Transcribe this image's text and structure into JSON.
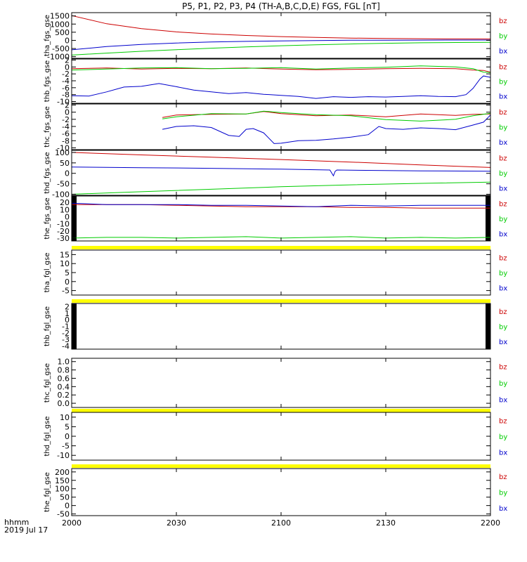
{
  "title": "P5, P1, P2, P3, P4 (TH-A,B,C,D,E) FGS, FGL [nT]",
  "footer": {
    "time_label": "hhmm",
    "date_label": "2019 Jul 17"
  },
  "x_axis": {
    "range": [
      0,
      120
    ],
    "ticks": [
      {
        "value": 0,
        "label": "2000"
      },
      {
        "value": 30,
        "label": "2030"
      },
      {
        "value": 60,
        "label": "2100"
      },
      {
        "value": 90,
        "label": "2130"
      },
      {
        "value": 120,
        "label": "2200"
      }
    ]
  },
  "series_colors": {
    "bx": "#0000cc",
    "by": "#00cc00",
    "bz": "#cc0000",
    "gap": "#ffff00",
    "fill": "#000000"
  },
  "legend_labels": [
    "bz",
    "by",
    "bx"
  ],
  "chart_data": [
    {
      "type": "line",
      "ylabel": "tha_fgs_gse",
      "ylim": [
        -1100,
        1700
      ],
      "yticks": [
        {
          "value": 1500,
          "label": "1500"
        },
        {
          "value": 1000,
          "label": "1000"
        },
        {
          "value": 500,
          "label": "500"
        },
        {
          "value": 0,
          "label": "0"
        },
        {
          "value": -500,
          "label": "-500"
        },
        {
          "value": -1000,
          "label": "-1000"
        }
      ],
      "series": [
        {
          "name": "bz",
          "x": [
            0,
            10,
            20,
            30,
            40,
            50,
            60,
            70,
            80,
            90,
            100,
            110,
            120
          ],
          "y": [
            1520,
            1020,
            720,
            520,
            390,
            300,
            230,
            180,
            140,
            115,
            100,
            90,
            85
          ]
        },
        {
          "name": "by",
          "x": [
            0,
            10,
            20,
            30,
            40,
            50,
            60,
            70,
            80,
            90,
            100,
            110,
            120
          ],
          "y": [
            -900,
            -780,
            -670,
            -570,
            -480,
            -400,
            -330,
            -270,
            -220,
            -180,
            -150,
            -130,
            -120
          ]
        },
        {
          "name": "bx",
          "x": [
            0,
            10,
            20,
            30,
            40,
            50,
            60,
            70,
            80,
            90,
            100,
            110,
            120
          ],
          "y": [
            -580,
            -380,
            -250,
            -160,
            -100,
            -60,
            -30,
            -10,
            5,
            10,
            15,
            20,
            20
          ]
        }
      ]
    },
    {
      "type": "line",
      "ylabel": "thb_fgs_gse",
      "ylim": [
        -10.5,
        2.3
      ],
      "yticks": [
        {
          "value": 2,
          "label": "2"
        },
        {
          "value": 0,
          "label": "0"
        },
        {
          "value": -2,
          "label": "-2"
        },
        {
          "value": -4,
          "label": "-4"
        },
        {
          "value": -6,
          "label": "-6"
        },
        {
          "value": -8,
          "label": "-8"
        },
        {
          "value": -10,
          "label": "-10"
        }
      ],
      "series": [
        {
          "name": "bz",
          "x": [
            0,
            10,
            20,
            30,
            40,
            50,
            60,
            70,
            80,
            90,
            100,
            110,
            115,
            118,
            120
          ],
          "y": [
            -0.5,
            -0.3,
            -0.6,
            -0.4,
            -0.5,
            -0.3,
            -0.6,
            -0.8,
            -0.7,
            -0.5,
            -0.4,
            -0.5,
            -0.9,
            -1.0,
            -1.5
          ]
        },
        {
          "name": "by",
          "x": [
            0,
            10,
            20,
            30,
            40,
            50,
            60,
            70,
            80,
            90,
            100,
            110,
            115,
            118,
            120
          ],
          "y": [
            -0.9,
            -0.6,
            -0.3,
            -0.2,
            -0.5,
            -0.4,
            -0.2,
            -0.6,
            -0.3,
            -0.1,
            0.3,
            0.0,
            -0.5,
            -1.5,
            -1.6
          ]
        },
        {
          "name": "bx",
          "x": [
            0,
            5,
            10,
            15,
            20,
            25,
            30,
            35,
            40,
            45,
            50,
            55,
            60,
            65,
            70,
            75,
            80,
            85,
            90,
            95,
            100,
            105,
            110,
            113,
            115,
            117,
            118,
            120
          ],
          "y": [
            -8.3,
            -8.4,
            -7.2,
            -5.8,
            -5.6,
            -4.8,
            -5.7,
            -6.7,
            -7.2,
            -7.7,
            -7.4,
            -7.9,
            -8.2,
            -8.5,
            -9.1,
            -8.6,
            -8.8,
            -8.6,
            -8.7,
            -8.5,
            -8.3,
            -8.5,
            -8.6,
            -8.0,
            -6.2,
            -3.5,
            -2.6,
            -3.0
          ]
        }
      ]
    },
    {
      "type": "line",
      "ylabel": "thc_fgs_gse",
      "ylim": [
        -10.5,
        2.3
      ],
      "yticks": [
        {
          "value": 2,
          "label": "2"
        },
        {
          "value": 0,
          "label": "0"
        },
        {
          "value": -2,
          "label": "-2"
        },
        {
          "value": -4,
          "label": "-4"
        },
        {
          "value": -6,
          "label": "-6"
        },
        {
          "value": -8,
          "label": "-8"
        },
        {
          "value": -10,
          "label": "-10"
        }
      ],
      "series": [
        {
          "name": "bz",
          "x": [
            26,
            30,
            40,
            50,
            55,
            60,
            70,
            80,
            90,
            100,
            110,
            115,
            120
          ],
          "y": [
            -1.5,
            -0.8,
            -0.6,
            -0.5,
            0.2,
            -0.4,
            -1.0,
            -0.8,
            -1.3,
            -0.5,
            -0.9,
            -0.6,
            -0.5
          ]
        },
        {
          "name": "by",
          "x": [
            26,
            30,
            40,
            50,
            55,
            60,
            70,
            80,
            90,
            100,
            110,
            115,
            120
          ],
          "y": [
            -1.9,
            -1.3,
            -0.4,
            -0.5,
            0.3,
            -0.1,
            -0.7,
            -1.0,
            -2.1,
            -2.5,
            -2.0,
            -1.0,
            -0.3
          ]
        },
        {
          "name": "bx",
          "x": [
            26,
            30,
            35,
            40,
            45,
            48,
            50,
            52,
            55,
            58,
            60,
            65,
            70,
            75,
            80,
            85,
            88,
            90,
            95,
            100,
            105,
            110,
            115,
            118,
            120
          ],
          "y": [
            -4.8,
            -4.0,
            -3.8,
            -4.3,
            -6.5,
            -6.8,
            -4.8,
            -4.6,
            -5.8,
            -8.8,
            -8.7,
            -8.0,
            -7.9,
            -7.5,
            -7.0,
            -6.3,
            -4.0,
            -4.6,
            -4.8,
            -4.4,
            -4.6,
            -4.9,
            -3.6,
            -2.8,
            -0.8
          ]
        }
      ]
    },
    {
      "type": "line",
      "ylabel": "thd_fgs_gse",
      "ylim": [
        -105,
        110
      ],
      "yticks": [
        {
          "value": 100,
          "label": "100"
        },
        {
          "value": 50,
          "label": "50"
        },
        {
          "value": 0,
          "label": "0"
        },
        {
          "value": -50,
          "label": "-50"
        },
        {
          "value": -100,
          "label": "-100"
        }
      ],
      "series": [
        {
          "name": "bz",
          "x": [
            0,
            20,
            40,
            60,
            80,
            100,
            120
          ],
          "y": [
            100,
            88,
            77,
            66,
            54,
            40,
            28
          ]
        },
        {
          "name": "by",
          "x": [
            0,
            20,
            40,
            60,
            80,
            100,
            120
          ],
          "y": [
            -100,
            -88,
            -76,
            -64,
            -55,
            -48,
            -42
          ]
        },
        {
          "name": "bx",
          "x": [
            0,
            20,
            40,
            60,
            74,
            75,
            75.5,
            76,
            80,
            100,
            120
          ],
          "y": [
            30,
            27,
            24,
            20,
            16,
            -12,
            10,
            16,
            15,
            12,
            10
          ]
        }
      ]
    },
    {
      "type": "line",
      "ylabel": "the_fgs_gse",
      "ylim": [
        -34,
        29
      ],
      "edge_fill": true,
      "yticks": [
        {
          "value": 20,
          "label": "20"
        },
        {
          "value": 10,
          "label": "10"
        },
        {
          "value": 0,
          "label": "0"
        },
        {
          "value": -10,
          "label": "-10"
        },
        {
          "value": -20,
          "label": "-20"
        },
        {
          "value": -30,
          "label": "-30"
        }
      ],
      "series": [
        {
          "name": "bz",
          "x": [
            0,
            10,
            20,
            30,
            40,
            50,
            60,
            70,
            80,
            90,
            100,
            110,
            120
          ],
          "y": [
            17,
            17,
            17,
            16,
            15,
            14,
            14,
            14,
            13,
            13,
            12,
            12,
            12
          ]
        },
        {
          "name": "by",
          "x": [
            0,
            10,
            20,
            30,
            40,
            50,
            60,
            70,
            80,
            90,
            100,
            110,
            120
          ],
          "y": [
            -30,
            -29,
            -29,
            -30,
            -29,
            -28,
            -30,
            -29,
            -28,
            -30,
            -29,
            -30,
            -29
          ]
        },
        {
          "name": "bx",
          "x": [
            0,
            10,
            20,
            30,
            40,
            50,
            60,
            70,
            80,
            90,
            100,
            110,
            120
          ],
          "y": [
            19,
            17,
            17,
            17,
            16,
            16,
            15,
            14,
            16,
            15,
            16,
            16,
            16
          ]
        }
      ]
    },
    {
      "type": "line",
      "ylabel": "tha_fgl_gse",
      "ylim": [
        -7.5,
        17.5
      ],
      "gap_bar": true,
      "yticks": [
        {
          "value": 15,
          "label": "15"
        },
        {
          "value": 10,
          "label": "10"
        },
        {
          "value": 5,
          "label": "5"
        },
        {
          "value": 0,
          "label": "0"
        },
        {
          "value": -5,
          "label": "-5"
        }
      ],
      "series": []
    },
    {
      "type": "line",
      "ylabel": "thb_fgl_gse",
      "ylim": [
        -4.5,
        2.5
      ],
      "gap_bar": true,
      "edge_fill": true,
      "yticks": [
        {
          "value": 2,
          "label": "2"
        },
        {
          "value": 1,
          "label": "1"
        },
        {
          "value": 0,
          "label": "0"
        },
        {
          "value": -1,
          "label": "-1"
        },
        {
          "value": -2,
          "label": "-2"
        },
        {
          "value": -3,
          "label": "-3"
        },
        {
          "value": -4,
          "label": "-4"
        }
      ],
      "series": []
    },
    {
      "type": "line",
      "ylabel": "thc_fgl_gse",
      "ylim": [
        -0.1,
        1.08
      ],
      "yticks": [
        {
          "value": 1.0,
          "label": "1.0"
        },
        {
          "value": 0.8,
          "label": "0.8"
        },
        {
          "value": 0.6,
          "label": "0.6"
        },
        {
          "value": 0.4,
          "label": "0.4"
        },
        {
          "value": 0.2,
          "label": "0.2"
        },
        {
          "value": 0.0,
          "label": "0.0"
        }
      ],
      "series": []
    },
    {
      "type": "line",
      "ylabel": "thd_fgl_gse",
      "ylim": [
        -12.5,
        12.5
      ],
      "gap_bar": true,
      "yticks": [
        {
          "value": 10,
          "label": "10"
        },
        {
          "value": 5,
          "label": "5"
        },
        {
          "value": 0,
          "label": "0"
        },
        {
          "value": -5,
          "label": "-5"
        },
        {
          "value": -10,
          "label": "-10"
        }
      ],
      "series": []
    },
    {
      "type": "line",
      "ylabel": "the_fgl_gse",
      "ylim": [
        -60,
        220
      ],
      "gap_bar": true,
      "yticks": [
        {
          "value": 200,
          "label": "200"
        },
        {
          "value": 150,
          "label": "150"
        },
        {
          "value": 100,
          "label": "100"
        },
        {
          "value": 50,
          "label": "50"
        },
        {
          "value": 0,
          "label": "0"
        },
        {
          "value": -50,
          "label": "-50"
        }
      ],
      "series": []
    }
  ]
}
